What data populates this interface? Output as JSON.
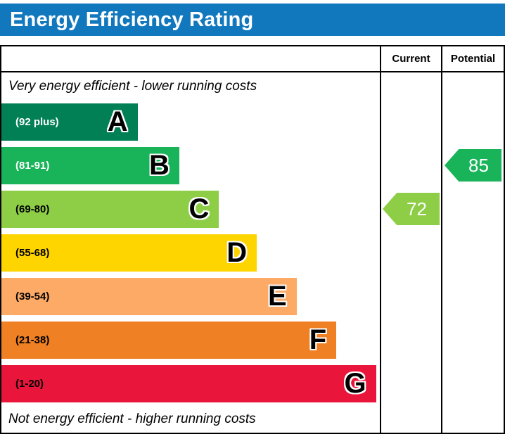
{
  "title": "Energy Efficiency Rating",
  "header": {
    "current": "Current",
    "potential": "Potential"
  },
  "captions": {
    "top": "Very energy efficient - lower running costs",
    "bottom": "Not energy efficient - higher running costs"
  },
  "colors": {
    "title_bar": "#1278be",
    "border": "#000000"
  },
  "chart_data": {
    "type": "bar",
    "title": "Energy Efficiency Rating",
    "legend_position": "none",
    "bands": [
      {
        "letter": "A",
        "range": "(92 plus)",
        "min": 92,
        "max": 100,
        "color": "#008054",
        "label_color": "#ffffff",
        "width_pct": 36
      },
      {
        "letter": "B",
        "range": "(81-91)",
        "min": 81,
        "max": 91,
        "color": "#19b459",
        "label_color": "#ffffff",
        "width_pct": 47
      },
      {
        "letter": "C",
        "range": "(69-80)",
        "min": 69,
        "max": 80,
        "color": "#8dce46",
        "label_color": "#000000",
        "width_pct": 57.5
      },
      {
        "letter": "D",
        "range": "(55-68)",
        "min": 55,
        "max": 68,
        "color": "#ffd500",
        "label_color": "#000000",
        "width_pct": 67.5
      },
      {
        "letter": "E",
        "range": "(39-54)",
        "min": 39,
        "max": 54,
        "color": "#fcaa65",
        "label_color": "#000000",
        "width_pct": 78
      },
      {
        "letter": "F",
        "range": "(21-38)",
        "min": 21,
        "max": 38,
        "color": "#ef8023",
        "label_color": "#000000",
        "width_pct": 88.5
      },
      {
        "letter": "G",
        "range": "(1-20)",
        "min": 1,
        "max": 20,
        "color": "#e9153b",
        "label_color": "#000000",
        "width_pct": 99
      }
    ],
    "current": {
      "label": "Current",
      "value": 72,
      "band": "C",
      "color": "#8dce46"
    },
    "potential": {
      "label": "Potential",
      "value": 85,
      "band": "B",
      "color": "#19b459"
    }
  }
}
